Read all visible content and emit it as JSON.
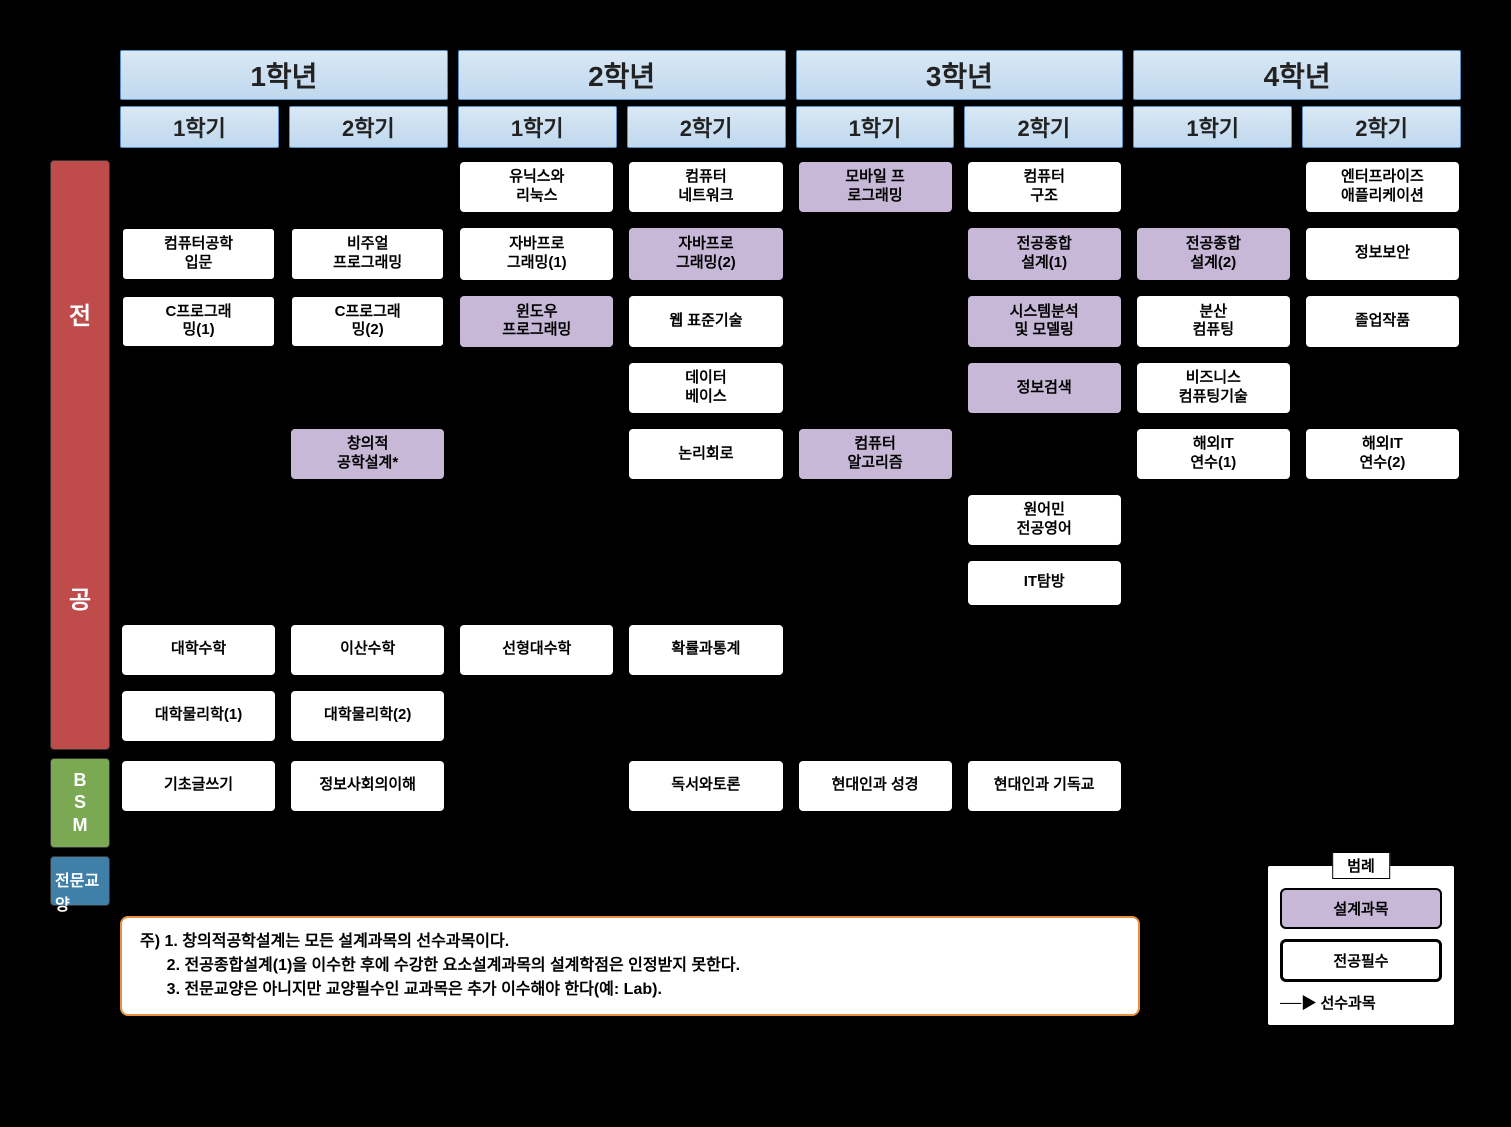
{
  "years": [
    "1학년",
    "2학년",
    "3학년",
    "4학년"
  ],
  "semesters": [
    "1학기",
    "2학기",
    "1학기",
    "2학기",
    "1학기",
    "2학기",
    "1학기",
    "2학기"
  ],
  "side_labels": {
    "major": "전공",
    "bsm": "BSM",
    "liberal": "전문교양"
  },
  "colors": {
    "header_bg_top": "#d9e8f5",
    "header_bg_bot": "#c0d8ee",
    "header_border": "#5a8fc4",
    "major_bg": "#c04b4b",
    "bsm_bg": "#7ba853",
    "liberal_bg": "#3f7fa8",
    "design_bg": "#c8b8d8",
    "notes_border": "#e89040"
  },
  "major_rows": [
    [
      null,
      null,
      "유닉스와\n리눅스",
      "컴퓨터\n네트워크",
      {
        "t": "모바일 프\n로그래밍",
        "d": true
      },
      "컴퓨터\n구조",
      null,
      "엔터프라이즈\n애플리케이션"
    ],
    [
      {
        "t": "컴퓨터공학\n입문",
        "r": true
      },
      {
        "t": "비주얼\n프로그래밍",
        "r": true
      },
      "자바프로\n그래밍(1)",
      {
        "t": "자바프로\n그래밍(2)",
        "d": true
      },
      null,
      {
        "t": "전공종합\n설계(1)",
        "d": true
      },
      {
        "t": "전공종합\n설계(2)",
        "d": true
      },
      "정보보안"
    ],
    [
      {
        "t": "C프로그래\n밍(1)",
        "r": true
      },
      {
        "t": "C프로그래\n밍(2)",
        "r": true
      },
      {
        "t": "윈도우\n프로그래밍",
        "d": true
      },
      "웹 표준기술",
      null,
      {
        "t": "시스템분석\n및 모델링",
        "d": true
      },
      "분산\n컴퓨팅",
      "졸업작품"
    ],
    [
      null,
      null,
      null,
      "데이터\n베이스",
      null,
      {
        "t": "정보검색",
        "d": true
      },
      "비즈니스\n컴퓨팅기술",
      null
    ],
    [
      null,
      {
        "t": "창의적\n공학설계*",
        "d": true
      },
      null,
      "논리회로",
      {
        "t": "컴퓨터\n알고리즘",
        "d": true
      },
      null,
      "해외IT\n연수(1)",
      "해외IT\n연수(2)"
    ],
    [
      null,
      null,
      null,
      null,
      null,
      "원어민\n전공영어",
      null,
      null
    ],
    [
      null,
      null,
      null,
      null,
      null,
      "IT탐방",
      null,
      null
    ]
  ],
  "bsm_rows": [
    [
      "대학수학",
      "이산수학",
      "선형대수학",
      "확률과통계",
      null,
      null,
      null,
      null
    ],
    [
      "대학물리학(1)",
      "대학물리학(2)",
      null,
      null,
      null,
      null,
      null,
      null
    ]
  ],
  "liberal_rows": [
    [
      "기초글쓰기",
      "정보사회의이해",
      null,
      "독서와토론",
      "현대인과 성경",
      "현대인과 기독교",
      null,
      null
    ]
  ],
  "notes": [
    "주) 1. 창의적공학설계는 모든 설계과목의 선수과목이다.",
    "      2. 전공종합설계(1)을 이수한 후에 수강한 요소설계과목의 설계학점은 인정받지 못한다.",
    "      3. 전문교양은 아니지만 교양필수인 교과목은 추가 이수해야 한다(예: Lab)."
  ],
  "legend": {
    "title": "범례",
    "design": "설계과목",
    "required": "전공필수",
    "prereq": "선수과목"
  }
}
